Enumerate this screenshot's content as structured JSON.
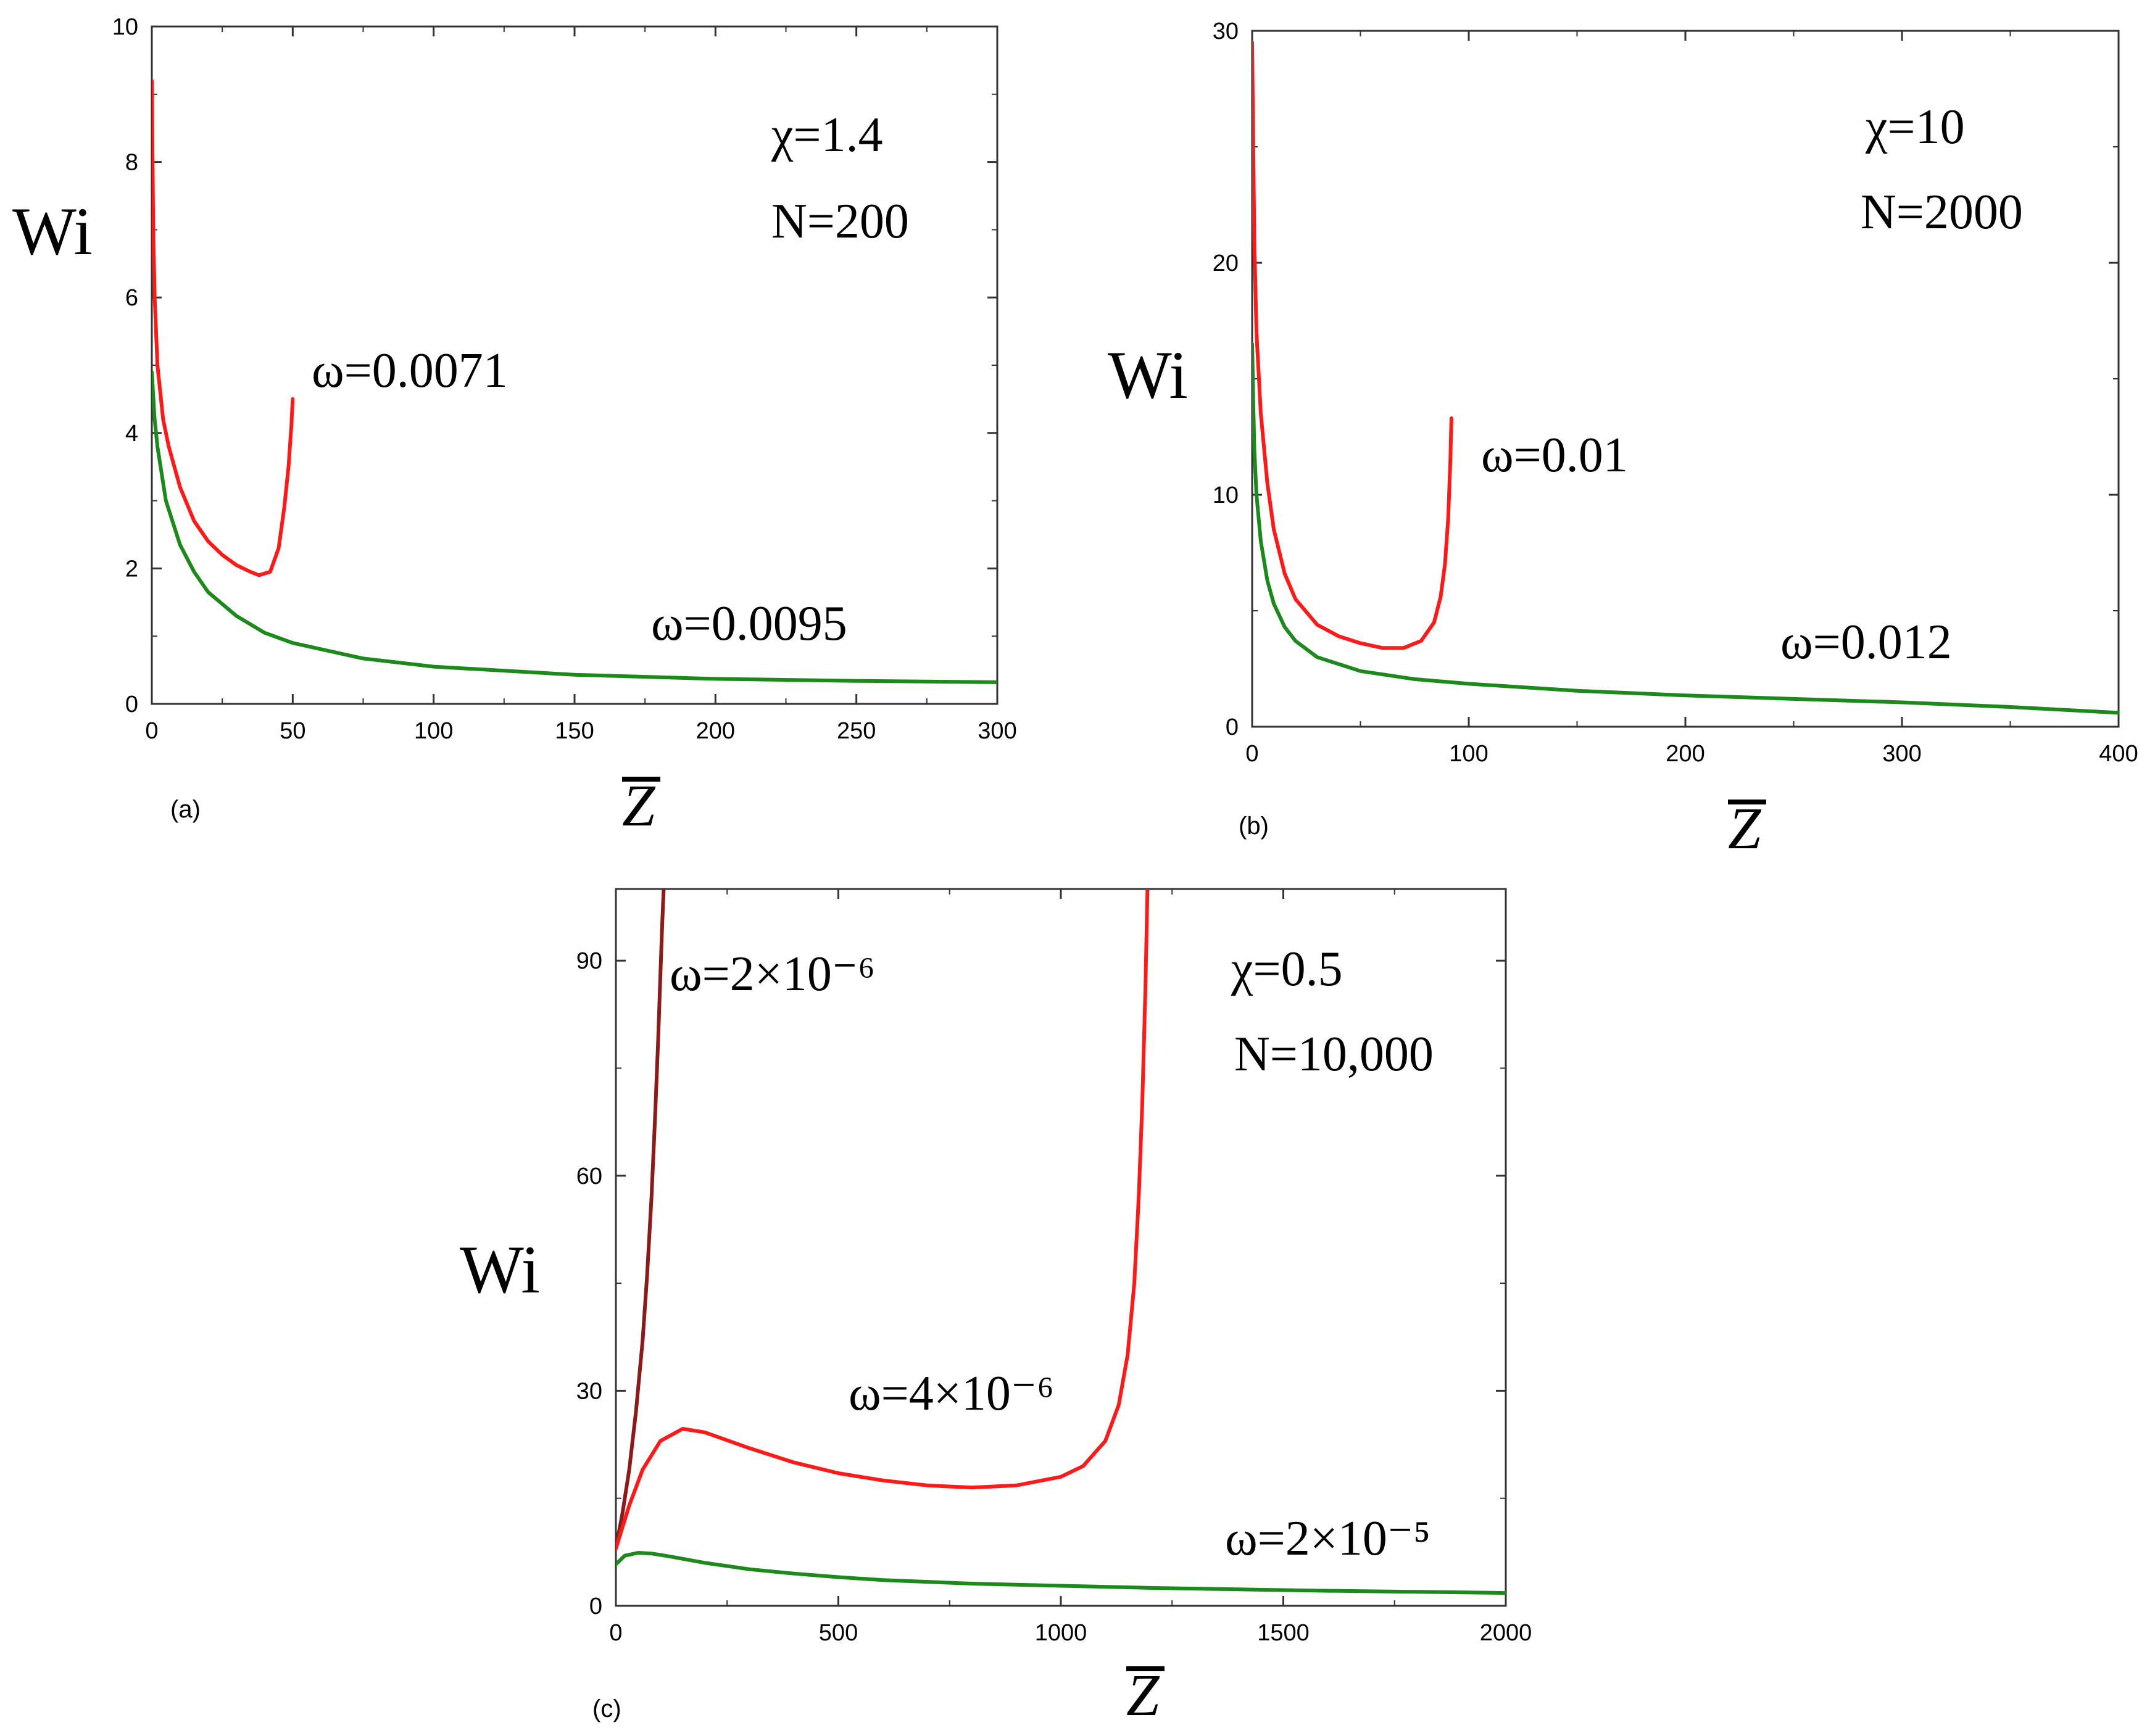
{
  "chart_data": [
    {
      "panel_label": "(a)",
      "type": "line",
      "xlabel": "Z",
      "ylabel": "Wi",
      "xlim": [
        0,
        300
      ],
      "ylim": [
        0,
        10
      ],
      "xticks": [
        0,
        50,
        100,
        150,
        200,
        250,
        300
      ],
      "yticks": [
        0,
        2,
        4,
        6,
        8,
        10
      ],
      "annotations": [
        "χ=1.4",
        "N=200"
      ],
      "series": [
        {
          "name": "ω=0.0071",
          "color": "#ff1a1a",
          "x": [
            0,
            0.5,
            1,
            2,
            4,
            6,
            10,
            15,
            20,
            25,
            30,
            35,
            38,
            42,
            45,
            47,
            48.5,
            49.5,
            50
          ],
          "y": [
            9.2,
            7.0,
            6.0,
            5.0,
            4.2,
            3.8,
            3.2,
            2.7,
            2.4,
            2.2,
            2.05,
            1.95,
            1.9,
            1.95,
            2.3,
            2.9,
            3.5,
            4.1,
            4.5
          ]
        },
        {
          "name": "ω=0.0095",
          "color": "#1b8a1b",
          "x": [
            0,
            1,
            2,
            5,
            10,
            15,
            20,
            30,
            40,
            50,
            75,
            100,
            150,
            200,
            250,
            300
          ],
          "y": [
            4.9,
            4.2,
            3.8,
            3.0,
            2.35,
            1.95,
            1.65,
            1.3,
            1.05,
            0.9,
            0.67,
            0.55,
            0.43,
            0.37,
            0.34,
            0.32
          ]
        }
      ]
    },
    {
      "panel_label": "(b)",
      "type": "line",
      "xlabel": "Z",
      "ylabel": "Wi",
      "xlim": [
        0,
        400
      ],
      "ylim": [
        0,
        30
      ],
      "xticks": [
        0,
        100,
        200,
        300,
        400
      ],
      "yticks": [
        0,
        10,
        20,
        30
      ],
      "annotations": [
        "χ=10",
        "N=2000"
      ],
      "series": [
        {
          "name": "ω=0.01",
          "color": "#ff1a1a",
          "x": [
            0,
            0.5,
            1,
            2,
            4,
            7,
            10,
            15,
            20,
            30,
            40,
            50,
            60,
            70,
            78,
            84,
            87,
            89,
            90.5,
            91.5,
            92
          ],
          "y": [
            29.5,
            25,
            21,
            17,
            13.5,
            10.5,
            8.5,
            6.6,
            5.5,
            4.4,
            3.9,
            3.6,
            3.4,
            3.4,
            3.7,
            4.5,
            5.6,
            7.0,
            9.0,
            11.5,
            13.3
          ]
        },
        {
          "name": "ω=0.012",
          "color": "#1b8a1b",
          "x": [
            0,
            0.5,
            1,
            2,
            4,
            7,
            10,
            15,
            20,
            30,
            50,
            75,
            100,
            150,
            200,
            250,
            300,
            350,
            400
          ],
          "y": [
            16.5,
            14,
            12,
            10,
            8,
            6.3,
            5.3,
            4.3,
            3.7,
            3.0,
            2.4,
            2.05,
            1.85,
            1.55,
            1.35,
            1.2,
            1.05,
            0.85,
            0.6
          ]
        }
      ]
    },
    {
      "panel_label": "(c)",
      "type": "line",
      "xlabel": "Z",
      "ylabel": "Wi",
      "xlim": [
        0,
        2000
      ],
      "ylim": [
        0,
        100
      ],
      "xticks": [
        0,
        500,
        1000,
        1500,
        2000
      ],
      "yticks": [
        0,
        30,
        60,
        90
      ],
      "annotations": [
        "χ=0.5",
        "N=10,000"
      ],
      "series": [
        {
          "name": "ω=2×10⁻⁶",
          "color": "#8b1a1a",
          "x": [
            0,
            15,
            30,
            45,
            60,
            70,
            80,
            88,
            95,
            100,
            104,
            108
          ],
          "y": [
            8,
            13,
            19,
            27,
            37,
            46,
            57,
            68,
            79,
            88,
            95,
            101
          ]
        },
        {
          "name": "ω=4×10⁻⁶",
          "color": "#ff1a1a",
          "x": [
            0,
            30,
            60,
            100,
            150,
            200,
            300,
            400,
            500,
            600,
            700,
            800,
            900,
            1000,
            1050,
            1100,
            1130,
            1150,
            1165,
            1175,
            1183,
            1190,
            1195
          ],
          "y": [
            8,
            14,
            19,
            23,
            24.7,
            24.2,
            22,
            20,
            18.5,
            17.5,
            16.8,
            16.5,
            16.8,
            18,
            19.5,
            23,
            28,
            35,
            45,
            57,
            70,
            86,
            101
          ]
        },
        {
          "name": "ω=2×10⁻⁵",
          "color": "#1b8a1b",
          "x": [
            0,
            20,
            50,
            80,
            120,
            200,
            300,
            400,
            500,
            600,
            800,
            1000,
            1200,
            1400,
            1600,
            1800,
            2000
          ],
          "y": [
            5.8,
            7.0,
            7.4,
            7.3,
            6.9,
            6.0,
            5.1,
            4.5,
            4.0,
            3.6,
            3.1,
            2.8,
            2.5,
            2.3,
            2.1,
            1.95,
            1.8
          ]
        }
      ]
    }
  ]
}
